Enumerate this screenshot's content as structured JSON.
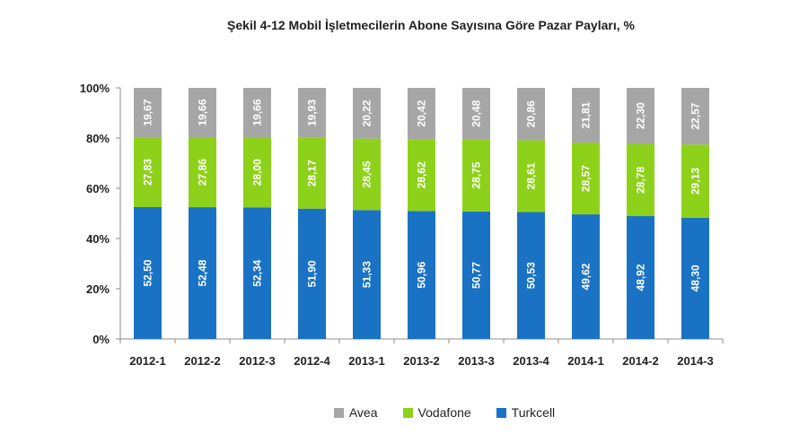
{
  "chart_data": {
    "type": "bar",
    "stacked": true,
    "title": "Şekil 4-12 Mobil İşletmecilerin Abone Sayısına Göre Pazar Payları, %",
    "xlabel": "",
    "ylabel": "",
    "ylim": [
      0,
      100
    ],
    "yticks": [
      "0%",
      "20%",
      "40%",
      "60%",
      "80%",
      "100%"
    ],
    "categories": [
      "2012-1",
      "2012-2",
      "2012-3",
      "2012-4",
      "2013-1",
      "2013-2",
      "2013-3",
      "2013-4",
      "2014-1",
      "2014-2",
      "2014-3"
    ],
    "series": [
      {
        "name": "Turkcell",
        "color": "#1a72c4",
        "values": [
          52.5,
          52.48,
          52.34,
          51.9,
          51.33,
          50.96,
          50.77,
          50.53,
          49.62,
          48.92,
          48.3
        ],
        "labels": [
          "52,50",
          "52,48",
          "52,34",
          "51,90",
          "51,33",
          "50,96",
          "50,77",
          "50,53",
          "49,62",
          "48,92",
          "48,30"
        ]
      },
      {
        "name": "Vodafone",
        "color": "#8ed11a",
        "values": [
          27.83,
          27.86,
          28.0,
          28.17,
          28.45,
          28.62,
          28.75,
          28.61,
          28.57,
          28.78,
          29.13
        ],
        "labels": [
          "27,83",
          "27,86",
          "28,00",
          "28,17",
          "28,45",
          "28,62",
          "28,75",
          "28,61",
          "28,57",
          "28,78",
          "29,13"
        ]
      },
      {
        "name": "Avea",
        "color": "#a6a6a6",
        "values": [
          19.67,
          19.66,
          19.66,
          19.93,
          20.22,
          20.42,
          20.48,
          20.86,
          21.81,
          22.3,
          22.57
        ],
        "labels": [
          "19,67",
          "19,66",
          "19,66",
          "19,93",
          "20,22",
          "20,42",
          "20,48",
          "20,86",
          "21,81",
          "22,30",
          "22,57"
        ]
      }
    ],
    "legend": {
      "position": "bottom",
      "order": [
        "Avea",
        "Vodafone",
        "Turkcell"
      ]
    },
    "grid": false
  }
}
